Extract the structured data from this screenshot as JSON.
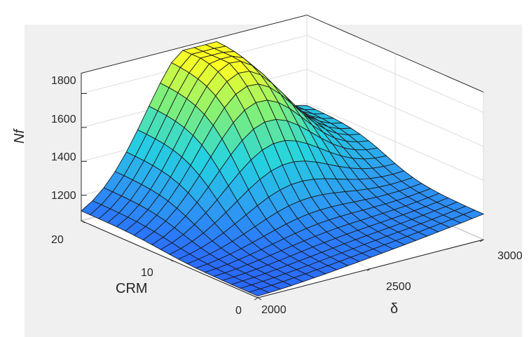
{
  "chart_data": {
    "type": "surface",
    "title": "",
    "xlabel": "δ",
    "ylabel": "CRM",
    "zlabel": "Nf",
    "x_ticks": [
      "2000",
      "2500",
      "3000"
    ],
    "y_ticks": [
      "0",
      "10",
      "20"
    ],
    "z_ticks": [
      "1200",
      "1400",
      "1600",
      "1800"
    ],
    "xlim": [
      2000,
      3000
    ],
    "ylim": [
      0,
      20
    ],
    "zlim": [
      1050,
      1900
    ],
    "grid": true,
    "colormap": [
      "#2a66ff",
      "#2d9ef2",
      "#25d4e0",
      "#7ff07a",
      "#ffff22"
    ],
    "mesh": {
      "x_steps": 20,
      "y_steps": 20
    },
    "corner_values": [
      {
        "x": 2000,
        "y": 0,
        "z": 1060
      },
      {
        "x": 3000,
        "y": 0,
        "z": 1200
      },
      {
        "x": 2000,
        "y": 20,
        "z": 1060
      },
      {
        "x": 3000,
        "y": 20,
        "z": 1320
      },
      {
        "x": 2500,
        "y": 20,
        "z": 1890
      }
    ]
  }
}
